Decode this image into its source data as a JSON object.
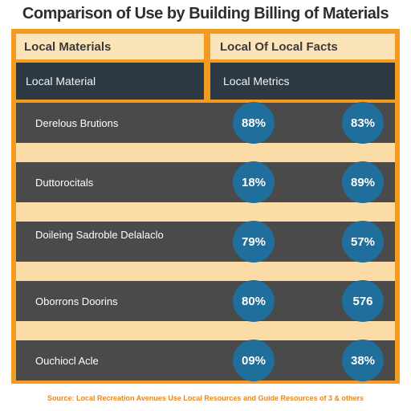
{
  "chart_data": {
    "type": "table",
    "title": "Comparison of Use by Building Billing of Materials",
    "columns": [
      "Local Materials",
      "Local Of Local Facts"
    ],
    "subheaders": [
      "Local Material",
      "Local Metrics"
    ],
    "rows": [
      {
        "label": "Derelous Brutions",
        "values": [
          "88%",
          "83%"
        ]
      },
      {
        "label": "Duttorocitals",
        "values": [
          "18%",
          "89%"
        ]
      },
      {
        "label": "Doileing Sadroble Delalaclo",
        "values": [
          "79%",
          "57%"
        ]
      },
      {
        "label": "Oborrons Doorins",
        "values": [
          "80%",
          "576"
        ]
      },
      {
        "label": "Ouchiocl Acle",
        "values": [
          "09%",
          "38%"
        ]
      }
    ],
    "footer": "Source: Local Recreation Avenues Use Local Resources and Guide Resources of 3 & others"
  },
  "colors": {
    "frame": "#f39a1f",
    "header_band": "#fbe5b8",
    "subheader": "#2d3a44",
    "row": "#4a4a4a",
    "stripe": "#fbdca7",
    "bubble": "#1f6e9c"
  }
}
